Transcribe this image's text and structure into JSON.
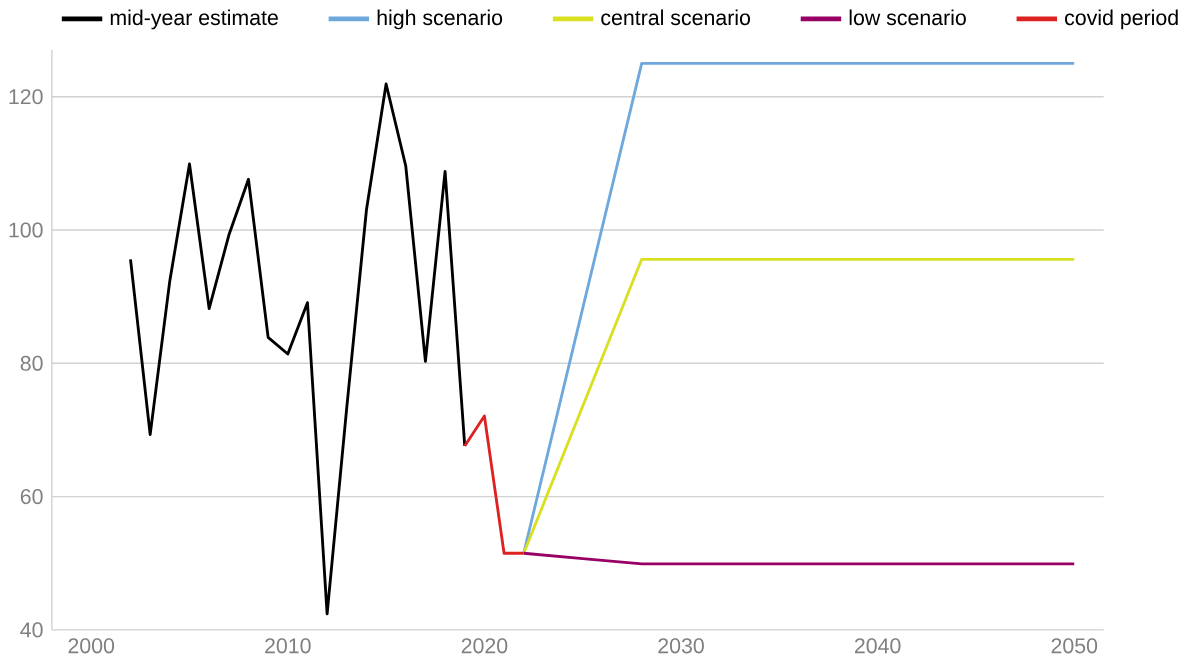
{
  "chart_data": {
    "type": "line",
    "xlim": [
      1998,
      2051.5
    ],
    "xticks": [
      2000,
      2010,
      2020,
      2030,
      2040,
      2050
    ],
    "ylim": [
      40,
      127
    ],
    "yticks": [
      40,
      60,
      80,
      100,
      120
    ],
    "grid": "y",
    "legend": "top left",
    "line_style": "solid",
    "marker": "none",
    "series": [
      {
        "name": "mid-year estimate",
        "color": "#000000",
        "x": [
          2002,
          2003,
          2004,
          2005,
          2006,
          2007,
          2008,
          2009,
          2010,
          2011,
          2012,
          2013,
          2014,
          2015,
          2016,
          2017,
          2018,
          2019
        ],
        "values": [
          95.6,
          69.3,
          92.4,
          109.9,
          88.2,
          99.2,
          107.6,
          83.9,
          81.4,
          89.1,
          42.4,
          73.4,
          103,
          121.9,
          109.6,
          80.3,
          108.8,
          67.6
        ]
      },
      {
        "name": "high scenario",
        "color": "#6fa8dc",
        "x": [
          2022,
          2028,
          2050
        ],
        "values": [
          51.5,
          125,
          125
        ]
      },
      {
        "name": "central scenario",
        "color": "#d9e021",
        "x": [
          2022,
          2028,
          2050
        ],
        "values": [
          51.5,
          95.6,
          95.6
        ]
      },
      {
        "name": "low scenario",
        "color": "#990066",
        "x": [
          2022,
          2025,
          2028,
          2050
        ],
        "values": [
          51.5,
          50.7,
          49.9,
          49.9
        ]
      },
      {
        "name": "covid period",
        "color": "#dd2222",
        "x": [
          2019,
          2020,
          2021,
          2022
        ],
        "values": [
          67.6,
          72.1,
          51.5,
          51.5
        ]
      }
    ]
  }
}
